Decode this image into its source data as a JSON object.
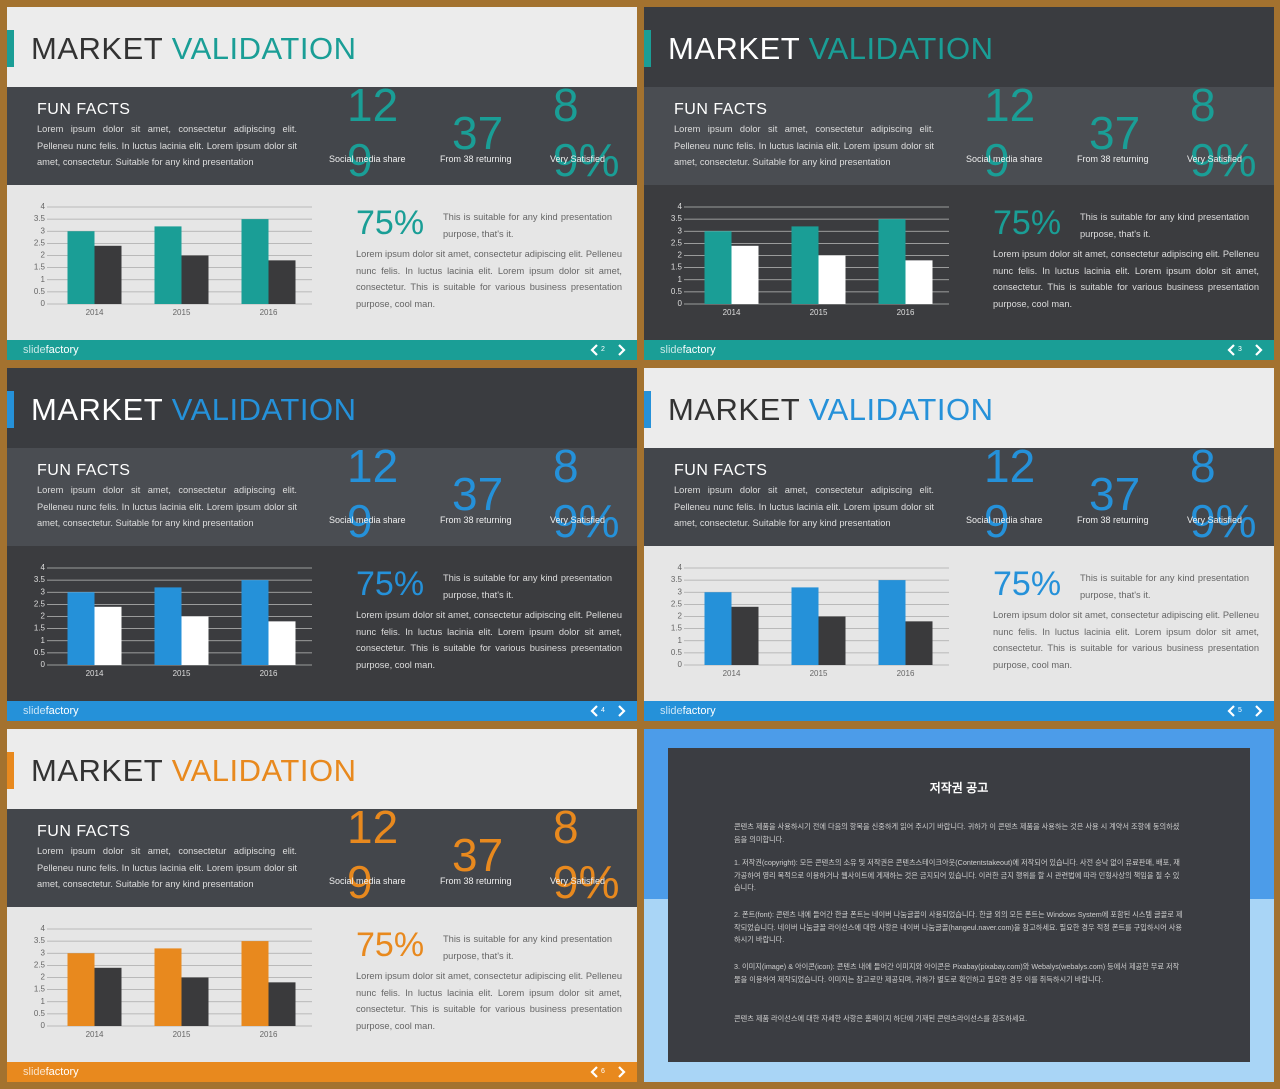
{
  "slide_text": {
    "title": [
      "MARKET",
      "VALIDATION"
    ],
    "heading": "FUN FACTS",
    "intro": "Lorem ipsum dolor sit amet, consectetur adipiscing elit. Pelleneu nunc felis. In luctus lacinia elit. Lorem ipsum dolor sit amet, consectetur. Suitable for any kind presentation",
    "stats": [
      {
        "value": "129",
        "label": "Social media share"
      },
      {
        "value": "37",
        "label": "From 38 returning"
      },
      {
        "value": "89%",
        "label": "Very Satisfied"
      }
    ],
    "highlight": "75%",
    "highlight_note": "This is suitable for any kind presentation purpose, that's it.",
    "body": "Lorem ipsum dolor sit amet, consectetur adipiscing elit. Pelleneu nunc felis. In luctus lacinia elit. Lorem ipsum dolor sit amet, consectetur. This is suitable for various business presentation purpose, cool man.",
    "brand": [
      "slide",
      "factory"
    ]
  },
  "slides": [
    {
      "page": 2,
      "theme": "light",
      "accent": "#1a9e96"
    },
    {
      "page": 3,
      "theme": "dark",
      "accent": "#1a9e96"
    },
    {
      "page": 4,
      "theme": "dark",
      "accent": "#2591d9"
    },
    {
      "page": 5,
      "theme": "light",
      "accent": "#2591d9"
    },
    {
      "page": 6,
      "theme": "light",
      "accent": "#e8891e"
    }
  ],
  "chart_data": [
    {
      "type": "bar",
      "categories": [
        "2014",
        "2015",
        "2016"
      ],
      "series": [
        {
          "color": "#1a9e96",
          "values": [
            3.0,
            3.2,
            3.5
          ]
        },
        {
          "color": "#3a3a3c",
          "values": [
            2.4,
            2.0,
            1.8
          ]
        }
      ],
      "ylim": [
        0,
        4
      ],
      "yticks": [
        0,
        0.5,
        1,
        1.5,
        2,
        2.5,
        3,
        3.5,
        4
      ],
      "grid": true
    },
    {
      "type": "bar",
      "categories": [
        "2014",
        "2015",
        "2016"
      ],
      "series": [
        {
          "color": "#1a9e96",
          "values": [
            3.0,
            3.2,
            3.5
          ]
        },
        {
          "color": "#ffffff",
          "values": [
            2.4,
            2.0,
            1.8
          ]
        }
      ],
      "ylim": [
        0,
        4
      ],
      "yticks": [
        0,
        0.5,
        1,
        1.5,
        2,
        2.5,
        3,
        3.5,
        4
      ],
      "grid": true
    },
    {
      "type": "bar",
      "categories": [
        "2014",
        "2015",
        "2016"
      ],
      "series": [
        {
          "color": "#2591d9",
          "values": [
            3.0,
            3.2,
            3.5
          ]
        },
        {
          "color": "#ffffff",
          "values": [
            2.4,
            2.0,
            1.8
          ]
        }
      ],
      "ylim": [
        0,
        4
      ],
      "yticks": [
        0,
        0.5,
        1,
        1.5,
        2,
        2.5,
        3,
        3.5,
        4
      ],
      "grid": true
    },
    {
      "type": "bar",
      "categories": [
        "2014",
        "2015",
        "2016"
      ],
      "series": [
        {
          "color": "#2591d9",
          "values": [
            3.0,
            3.2,
            3.5
          ]
        },
        {
          "color": "#3a3a3c",
          "values": [
            2.4,
            2.0,
            1.8
          ]
        }
      ],
      "ylim": [
        0,
        4
      ],
      "yticks": [
        0,
        0.5,
        1,
        1.5,
        2,
        2.5,
        3,
        3.5,
        4
      ],
      "grid": true
    },
    {
      "type": "bar",
      "categories": [
        "2014",
        "2015",
        "2016"
      ],
      "series": [
        {
          "color": "#e8891e",
          "values": [
            3.0,
            3.2,
            3.5
          ]
        },
        {
          "color": "#3a3a3c",
          "values": [
            2.4,
            2.0,
            1.8
          ]
        }
      ],
      "ylim": [
        0,
        4
      ],
      "yticks": [
        0,
        0.5,
        1,
        1.5,
        2,
        2.5,
        3,
        3.5,
        4
      ],
      "grid": true
    }
  ],
  "notice": {
    "title": "저작권 공고",
    "paragraphs": [
      "콘텐츠 제품을 사용하시기 전에 다음의 항목을 신중하게 읽어 주시기 바랍니다. 귀하가 이 콘텐츠 제품을 사용하는 것은 사용 시 계약서 조항에 동의하셨음을 의미합니다.",
      "1. 저작권(copyright): 모든 콘텐츠의 소유 및 저작권은 콘텐츠스테이크아웃(Contentstakeout)에 저작되어 있습니다. 사전 승낙 없이 유료판매, 배포, 재가공하여 영리 목적으로 이용하거나 웹사이트에 게재하는 것은 금지되어 있습니다. 이러한 금지 행위를 할 시 관련법에 따라 민형사상의 책임을 질 수 있습니다.",
      "2. 폰트(font): 콘텐츠 내에 들어간 한글 폰트는 네이버 나눔글꼴이 사용되었습니다. 한글 외의 모든 폰트는 Windows System에 포함된 시스템 글꼴로 제작되었습니다. 네이버 나눔글꼴 라이선스에 대한 사항은 네이버 나눔글꼴(hangeul.naver.com)을 참고하세요. 필요한 경우 적정 폰트를 구입하시어 사용하시기 바랍니다.",
      "3. 이미지(image) & 아이콘(icon): 콘텐츠 내에 들어간 이미지와 아이콘은 Pixabay(pixabay.com)와 Webalys(webalys.com) 등에서 제공한 무료 저작물을 이용하여 제작되었습니다. 이미지는 참고로만 제공되며, 귀하가 별도로 확인하고 필요한 경우 이를 취득하시기 바랍니다.",
      "콘텐츠 제품 라이선스에 대한 자세한 사항은 홈페이지 하단에 기재된 콘텐츠라이선스를 참조하세요."
    ]
  }
}
